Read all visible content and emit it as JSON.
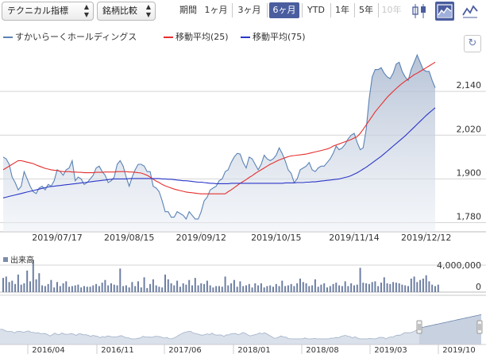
{
  "toolbar": {
    "technical_select": "テクニカル指標",
    "compare_select": "銘柄比較",
    "period_label": "期間",
    "periods": [
      "1ヶ月",
      "3ヶ月",
      "6ヶ月",
      "YTD",
      "1年",
      "5年",
      "10年"
    ],
    "active_period": "6ヶ月",
    "disabled_period": "10年",
    "accent_color": "#4a5d9e"
  },
  "legend": {
    "price_name": "すかいらーくホールディングス",
    "ma25_name": "移動平均(25)",
    "ma75_name": "移動平均(75)",
    "price_color": "#5a82b4",
    "ma25_color": "#e53030",
    "ma75_color": "#2a36c8"
  },
  "volume": {
    "label": "出来高",
    "ticks": [
      "4,000,000",
      "0"
    ]
  },
  "navigator": {
    "labels": [
      "2016/04",
      "2016/11",
      "2017/06",
      "2018/01",
      "2018/08",
      "2019/03",
      "2019/10"
    ]
  },
  "chart_data": {
    "type": "line",
    "x_ticks": [
      "2019/07/17",
      "2019/08/15",
      "2019/09/12",
      "2019/10/15",
      "2019/11/14",
      "2019/12/12"
    ],
    "y_ticks": [
      "2,140",
      "2,020",
      "1,900",
      "1,780"
    ],
    "ylim": [
      1755,
      2260
    ],
    "series": [
      {
        "name": "すかいらーくホールディングス",
        "values": [
          1960,
          1955,
          1940,
          1905,
          1890,
          1870,
          1880,
          1920,
          1900,
          1880,
          1865,
          1860,
          1875,
          1880,
          1870,
          1885,
          1880,
          1895,
          1925,
          1920,
          1910,
          1925,
          1930,
          1950,
          1895,
          1905,
          1900,
          1885,
          1890,
          1900,
          1910,
          1930,
          1935,
          1920,
          1910,
          1890,
          1895,
          1905,
          1940,
          1950,
          1935,
          1905,
          1880,
          1905,
          1925,
          1940,
          1940,
          1935,
          1920,
          1920,
          1880,
          1875,
          1865,
          1840,
          1810,
          1810,
          1795,
          1795,
          1810,
          1805,
          1800,
          1790,
          1810,
          1800,
          1790,
          1790,
          1810,
          1840,
          1850,
          1870,
          1875,
          1880,
          1895,
          1900,
          1920,
          1925,
          1945,
          1960,
          1970,
          1968,
          1945,
          1930,
          1960,
          1955,
          1940,
          1925,
          1940,
          1965,
          1955,
          1950,
          1955,
          1965,
          1985,
          1970,
          1950,
          1925,
          1915,
          1890,
          1900,
          1925,
          1930,
          1935,
          1945,
          1925,
          1920,
          1930,
          1935,
          1935,
          1945,
          1955,
          1970,
          1990,
          1980,
          1985,
          1995,
          2010,
          2020,
          2025,
          2000,
          1980,
          1985,
          2035,
          2120,
          2180,
          2200,
          2200,
          2205,
          2190,
          2180,
          2175,
          2190,
          2215,
          2220,
          2195,
          2180,
          2170,
          2200,
          2220,
          2240,
          2220,
          2200,
          2195,
          2195,
          2170,
          2150
        ],
        "color": "#5a82b4"
      },
      {
        "name": "移動平均(25)",
        "values": [
          1925,
          1930,
          1935,
          1940,
          1945,
          1950,
          1950,
          1948,
          1946,
          1944,
          1942,
          1938,
          1935,
          1932,
          1929,
          1927,
          1925,
          1924,
          1923,
          1921,
          1920,
          1920,
          1920,
          1919,
          1919,
          1918,
          1918,
          1917,
          1917,
          1917,
          1917,
          1918,
          1918,
          1918,
          1919,
          1919,
          1919,
          1919,
          1920,
          1920,
          1920,
          1920,
          1919,
          1919,
          1918,
          1917,
          1916,
          1913,
          1910,
          1905,
          1899,
          1894,
          1890,
          1885,
          1881,
          1878,
          1875,
          1872,
          1870,
          1868,
          1866,
          1864,
          1863,
          1862,
          1861,
          1860,
          1859,
          1859,
          1859,
          1859,
          1859,
          1859,
          1859,
          1859,
          1859,
          1865,
          1870,
          1876,
          1882,
          1888,
          1893,
          1898,
          1904,
          1909,
          1915,
          1920,
          1925,
          1930,
          1935,
          1940,
          1944,
          1948,
          1952,
          1955,
          1958,
          1961,
          1963,
          1964,
          1965,
          1966,
          1967,
          1968,
          1970,
          1972,
          1974,
          1976,
          1978,
          1980,
          1982,
          1985,
          1990,
          1993,
          1996,
          1999,
          2002,
          2005,
          2008,
          2012,
          2016,
          2025,
          2036,
          2048,
          2060,
          2072,
          2084,
          2094,
          2104,
          2114,
          2124,
          2132,
          2140,
          2148,
          2155,
          2162,
          2168,
          2174,
          2180,
          2186,
          2190,
          2195,
          2200,
          2205,
          2210,
          2215,
          2220
        ],
        "color": "#e53030"
      },
      {
        "name": "移動平均(75)",
        "values": [
          1848,
          1850,
          1852,
          1854,
          1856,
          1858,
          1860,
          1862,
          1864,
          1866,
          1868,
          1870,
          1872,
          1874,
          1876,
          1878,
          1879,
          1880,
          1881,
          1882,
          1883,
          1884,
          1885,
          1886,
          1887,
          1888,
          1889,
          1890,
          1891,
          1892,
          1893,
          1894,
          1895,
          1896,
          1897,
          1898,
          1899,
          1900,
          1900,
          1900,
          1900,
          1900,
          1901,
          1901,
          1901,
          1901,
          1901,
          1901,
          1901,
          1901,
          1901,
          1901,
          1901,
          1900,
          1900,
          1899,
          1899,
          1898,
          1897,
          1896,
          1895,
          1895,
          1894,
          1893,
          1892,
          1891,
          1891,
          1890,
          1889,
          1888,
          1888,
          1887,
          1887,
          1887,
          1887,
          1887,
          1888,
          1888,
          1888,
          1888,
          1888,
          1888,
          1888,
          1888,
          1888,
          1888,
          1888,
          1888,
          1888,
          1888,
          1888,
          1888,
          1888,
          1888,
          1889,
          1889,
          1889,
          1889,
          1890,
          1890,
          1890,
          1891,
          1891,
          1892,
          1892,
          1893,
          1894,
          1895,
          1896,
          1897,
          1898,
          1899,
          1900,
          1902,
          1904,
          1906,
          1909,
          1913,
          1917,
          1922,
          1927,
          1932,
          1938,
          1944,
          1950,
          1956,
          1962,
          1969,
          1976,
          1983,
          1990,
          1997,
          2004,
          2011,
          2018,
          2026,
          2034,
          2042,
          2050,
          2058,
          2066,
          2074,
          2081,
          2088,
          2095
        ],
        "color": "#2a36c8"
      }
    ],
    "volume": [
      2100000,
      2300000,
      1500000,
      1700000,
      1200000,
      2600000,
      1100000,
      1300000,
      3200000,
      1600000,
      4800000,
      1900000,
      2800000,
      1000000,
      900000,
      1200000,
      1800000,
      700000,
      1500000,
      900000,
      1300000,
      1600000,
      800000,
      900000,
      1000000,
      1100000,
      700000,
      900000,
      800000,
      800000,
      1000000,
      1200000,
      900000,
      1400000,
      1800000,
      1000000,
      1300000,
      1100000,
      1000000,
      3500000,
      900000,
      1000000,
      700000,
      1500000,
      900000,
      1600000,
      700000,
      2200000,
      600000,
      1200000,
      1900000,
      1000000,
      800000,
      700000,
      2600000,
      1900000,
      1300000,
      1000000,
      1700000,
      800000,
      1300000,
      1100000,
      1800000,
      1000000,
      2100000,
      1000000,
      1300000,
      1200000,
      1700000,
      1000000,
      700000,
      900000,
      900000,
      800000,
      2300000,
      1000000,
      1300000,
      1800000,
      800000,
      1600000,
      900000,
      1000000,
      1200000,
      700000,
      1300000,
      1000000,
      1300000,
      700000,
      900000,
      1000000,
      800000,
      1200000,
      900000,
      1700000,
      900000,
      1000000,
      1200000,
      900000,
      1300000,
      2000000,
      1500000,
      1300000,
      900000,
      1000000,
      1900000,
      800000,
      1100000,
      1300000,
      700000,
      900000,
      1200000,
      1400000,
      1000000,
      900000,
      1600000,
      900000,
      1300000,
      1000000,
      1100000,
      3600000,
      1400000,
      1300000,
      1200000,
      1500000,
      1600000,
      900000,
      1400000,
      2200000,
      1300000,
      1200000,
      1500000,
      1400000,
      1300000,
      1100000,
      1000000,
      900000,
      2000000,
      2300000,
      1500000,
      1800000,
      2000000,
      2500000,
      1600000,
      1100000,
      900000,
      1100000
    ]
  }
}
